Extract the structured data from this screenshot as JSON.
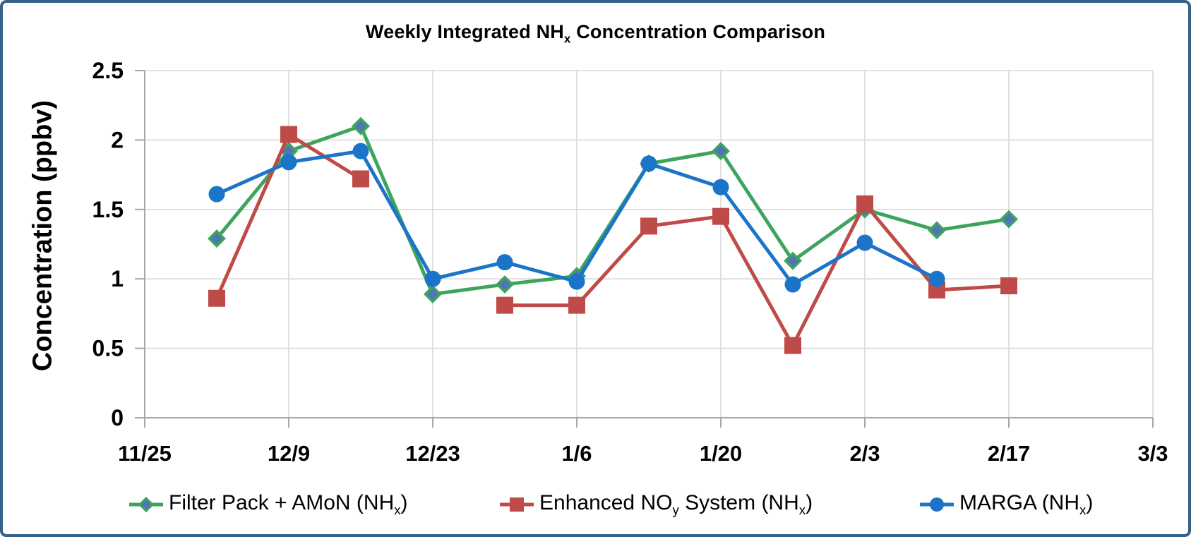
{
  "frame": {
    "border_color": "#35608A",
    "background": "#FFFFFF"
  },
  "title": {
    "segments": [
      {
        "t": "Weekly Integrated NH"
      },
      {
        "t": "x",
        "sub": true
      },
      {
        "t": " Concentration Comparison"
      }
    ]
  },
  "chart_data": {
    "type": "line",
    "title": "Weekly Integrated NHx Concentration Comparison",
    "xlabel": "",
    "ylabel": "Concentration (ppbv)",
    "ylim": [
      0,
      2.5
    ],
    "ytick_step": 0.5,
    "yticks": [
      "0",
      "0.5",
      "1",
      "1.5",
      "2",
      "2.5"
    ],
    "xticks": [
      "11/25",
      "12/9",
      "12/23",
      "1/6",
      "1/20",
      "2/3",
      "2/17",
      "3/3"
    ],
    "xtick_days": [
      0,
      14,
      28,
      42,
      56,
      70,
      84,
      98
    ],
    "x_day_range": [
      0,
      98
    ],
    "x_dates": [
      "12/2",
      "12/9",
      "12/16",
      "12/23",
      "12/30",
      "1/6",
      "1/13",
      "1/20",
      "1/27",
      "2/3",
      "2/10",
      "2/17"
    ],
    "x_days": [
      7,
      14,
      21,
      28,
      35,
      42,
      49,
      56,
      63,
      70,
      77,
      84
    ],
    "grid": true,
    "grid_color": "#D9D9D9",
    "axis_color": "#A6A6A6",
    "legend_position": "bottom",
    "series": [
      {
        "name": "Filter Pack + AMoN (NHx)",
        "color": "#3FA45B",
        "marker": "diamond",
        "marker_fill": "#4F74B8",
        "values": [
          1.29,
          1.92,
          2.1,
          0.89,
          0.96,
          1.02,
          1.83,
          1.92,
          1.13,
          1.5,
          1.35,
          1.43
        ]
      },
      {
        "name": "Enhanced NOy System (NHx)",
        "color": "#BE4B48",
        "marker": "square",
        "marker_fill": "#BE4B48",
        "values": [
          0.86,
          2.04,
          1.72,
          null,
          0.81,
          0.81,
          1.38,
          1.45,
          0.52,
          1.54,
          0.92,
          0.95
        ]
      },
      {
        "name": "MARGA (NHx)",
        "color": "#1B74C8",
        "marker": "circle",
        "marker_fill": "#1B74C8",
        "values": [
          1.61,
          1.84,
          1.92,
          1.0,
          1.12,
          0.98,
          1.83,
          1.66,
          0.96,
          1.26,
          1.0,
          null
        ]
      }
    ]
  },
  "legend": {
    "items": [
      {
        "marker": "diamond",
        "color": "#3FA45B",
        "marker_fill": "#4F74B8",
        "segments": [
          {
            "t": "Filter Pack + AMoN (NH"
          },
          {
            "t": "x",
            "sub": true
          },
          {
            "t": ")"
          }
        ]
      },
      {
        "marker": "square",
        "color": "#BE4B48",
        "marker_fill": "#BE4B48",
        "segments": [
          {
            "t": "Enhanced NO"
          },
          {
            "t": "y",
            "sub": true
          },
          {
            "t": " System (NH"
          },
          {
            "t": "x",
            "sub": true
          },
          {
            "t": ")"
          }
        ]
      },
      {
        "marker": "circle",
        "color": "#1B74C8",
        "marker_fill": "#1B74C8",
        "segments": [
          {
            "t": "MARGA (NH"
          },
          {
            "t": "x",
            "sub": true
          },
          {
            "t": ")"
          }
        ]
      }
    ]
  }
}
